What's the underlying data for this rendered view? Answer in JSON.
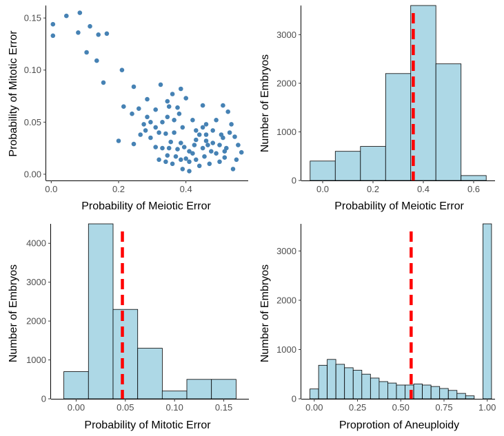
{
  "style": {
    "point_color": "#4682b4",
    "bar_fill": "#add8e6",
    "bar_stroke": "#000000",
    "mean_line_color": "#ff0000"
  },
  "chart_data": [
    {
      "type": "scatter",
      "xlabel": "Probability of Meiotic Error",
      "ylabel": "Probability of Mitotic Error",
      "xlim": [
        -0.015,
        0.585
      ],
      "ylim": [
        -0.006,
        0.162
      ],
      "x_ticks": [
        0.0,
        0.2,
        0.4
      ],
      "x_tick_labels": [
        "0.0",
        "0.2",
        "0.4"
      ],
      "y_ticks": [
        0.0,
        0.05,
        0.1,
        0.15
      ],
      "y_tick_labels": [
        "0.00",
        "0.05",
        "0.10",
        "0.15"
      ],
      "grid": false,
      "points": [
        [
          0.005,
          0.144
        ],
        [
          0.005,
          0.133
        ],
        [
          0.045,
          0.152
        ],
        [
          0.085,
          0.155
        ],
        [
          0.08,
          0.136
        ],
        [
          0.115,
          0.142
        ],
        [
          0.105,
          0.117
        ],
        [
          0.14,
          0.134
        ],
        [
          0.165,
          0.135
        ],
        [
          0.135,
          0.109
        ],
        [
          0.155,
          0.088
        ],
        [
          0.21,
          0.1
        ],
        [
          0.245,
          0.084
        ],
        [
          0.215,
          0.065
        ],
        [
          0.2,
          0.032
        ],
        [
          0.26,
          0.063
        ],
        [
          0.24,
          0.058
        ],
        [
          0.285,
          0.072
        ],
        [
          0.245,
          0.029
        ],
        [
          0.285,
          0.055
        ],
        [
          0.325,
          0.086
        ],
        [
          0.36,
          0.077
        ],
        [
          0.385,
          0.082
        ],
        [
          0.31,
          0.062
        ],
        [
          0.33,
          0.05
        ],
        [
          0.295,
          0.05
        ],
        [
          0.35,
          0.065
        ],
        [
          0.375,
          0.064
        ],
        [
          0.4,
          0.073
        ],
        [
          0.38,
          0.058
        ],
        [
          0.345,
          0.055
        ],
        [
          0.365,
          0.052
        ],
        [
          0.42,
          0.052
        ],
        [
          0.45,
          0.066
        ],
        [
          0.31,
          0.045
        ],
        [
          0.32,
          0.04
        ],
        [
          0.34,
          0.039
        ],
        [
          0.365,
          0.04
        ],
        [
          0.39,
          0.045
        ],
        [
          0.355,
          0.031
        ],
        [
          0.295,
          0.035
        ],
        [
          0.31,
          0.026
        ],
        [
          0.33,
          0.025
        ],
        [
          0.35,
          0.025
        ],
        [
          0.375,
          0.024
        ],
        [
          0.395,
          0.026
        ],
        [
          0.41,
          0.022
        ],
        [
          0.43,
          0.033
        ],
        [
          0.45,
          0.025
        ],
        [
          0.42,
          0.02
        ],
        [
          0.345,
          0.018
        ],
        [
          0.37,
          0.017
        ],
        [
          0.32,
          0.014
        ],
        [
          0.34,
          0.012
        ],
        [
          0.385,
          0.014
        ],
        [
          0.4,
          0.015
        ],
        [
          0.41,
          0.012
        ],
        [
          0.36,
          0.01
        ],
        [
          0.39,
          0.005
        ],
        [
          0.41,
          0.003
        ],
        [
          0.43,
          0.014
        ],
        [
          0.455,
          0.017
        ],
        [
          0.465,
          0.028
        ],
        [
          0.48,
          0.03
        ],
        [
          0.5,
          0.028
        ],
        [
          0.49,
          0.02
        ],
        [
          0.515,
          0.022
        ],
        [
          0.51,
          0.035
        ],
        [
          0.46,
          0.038
        ],
        [
          0.48,
          0.042
        ],
        [
          0.45,
          0.045
        ],
        [
          0.46,
          0.048
        ],
        [
          0.49,
          0.052
        ],
        [
          0.51,
          0.066
        ],
        [
          0.525,
          0.06
        ],
        [
          0.535,
          0.048
        ],
        [
          0.53,
          0.04
        ],
        [
          0.545,
          0.036
        ],
        [
          0.52,
          0.025
        ],
        [
          0.555,
          0.028
        ],
        [
          0.565,
          0.021
        ],
        [
          0.55,
          0.014
        ],
        [
          0.515,
          0.016
        ],
        [
          0.47,
          0.01
        ],
        [
          0.44,
          0.008
        ],
        [
          0.54,
          0.005
        ],
        [
          0.5,
          0.012
        ],
        [
          0.475,
          0.022
        ],
        [
          0.505,
          0.038
        ],
        [
          0.425,
          0.028
        ],
        [
          0.44,
          0.038
        ],
        [
          0.275,
          0.048
        ],
        [
          0.265,
          0.038
        ],
        [
          0.28,
          0.042
        ],
        [
          0.345,
          0.07
        ],
        [
          0.385,
          0.03
        ],
        [
          0.43,
          0.042
        ],
        [
          0.46,
          0.032
        ]
      ]
    },
    {
      "type": "bar",
      "xlabel": "Probability of Meiotic Error",
      "ylabel": "Number of Embryos",
      "xlim": [
        -0.085,
        0.685
      ],
      "ylim": [
        0,
        3600
      ],
      "x_ticks": [
        0.0,
        0.2,
        0.4,
        0.6
      ],
      "x_tick_labels": [
        "0.0",
        "0.2",
        "0.4",
        "0.6"
      ],
      "y_ticks": [
        0,
        1000,
        2000,
        3000
      ],
      "y_tick_labels": [
        "0",
        "1000",
        "2000",
        "3000"
      ],
      "grid": false,
      "bin_edges": [
        -0.05,
        0.05,
        0.15,
        0.25,
        0.35,
        0.45,
        0.55,
        0.65
      ],
      "counts": [
        400,
        600,
        700,
        2200,
        3600,
        2400,
        100
      ],
      "mean_line": 0.36
    },
    {
      "type": "bar",
      "xlabel": "Probability of Mitotic Error",
      "ylabel": "Number of Embryos",
      "xlim": [
        -0.0255,
        0.1755
      ],
      "ylim": [
        0,
        4500
      ],
      "x_ticks": [
        0.0,
        0.05,
        0.1,
        0.15
      ],
      "x_tick_labels": [
        "0.00",
        "0.05",
        "0.10",
        "0.15"
      ],
      "y_ticks": [
        0,
        1000,
        2000,
        3000,
        4000
      ],
      "y_tick_labels": [
        "0",
        "1000",
        "2000",
        "3000",
        "4000"
      ],
      "grid": false,
      "bin_edges": [
        -0.0125,
        0.0125,
        0.0375,
        0.0625,
        0.0875,
        0.1125,
        0.1375,
        0.1625
      ],
      "counts": [
        700,
        4500,
        2300,
        1300,
        200,
        500,
        500
      ],
      "mean_line": 0.047
    },
    {
      "type": "bar",
      "xlabel": "Proprotion of Aneuploidy",
      "ylabel": "Number of Embryos",
      "xlim": [
        -0.075,
        1.045
      ],
      "ylim": [
        0,
        3550
      ],
      "x_ticks": [
        0.0,
        0.25,
        0.5,
        0.75,
        1.0
      ],
      "x_tick_labels": [
        "0.00",
        "0.25",
        "0.50",
        "0.75",
        "1.00"
      ],
      "y_ticks": [
        0,
        1000,
        2000,
        3000
      ],
      "y_tick_labels": [
        "0",
        "1000",
        "2000",
        "3000"
      ],
      "grid": false,
      "bin_edges": [
        -0.025,
        0.025,
        0.075,
        0.125,
        0.175,
        0.225,
        0.275,
        0.325,
        0.375,
        0.425,
        0.475,
        0.525,
        0.575,
        0.625,
        0.675,
        0.725,
        0.775,
        0.825,
        0.875,
        0.925,
        0.975,
        1.025
      ],
      "counts": [
        200,
        680,
        800,
        700,
        630,
        580,
        500,
        420,
        350,
        320,
        280,
        280,
        300,
        280,
        250,
        210,
        170,
        110,
        60,
        0,
        3550
      ],
      "mean_line": 0.56
    }
  ]
}
